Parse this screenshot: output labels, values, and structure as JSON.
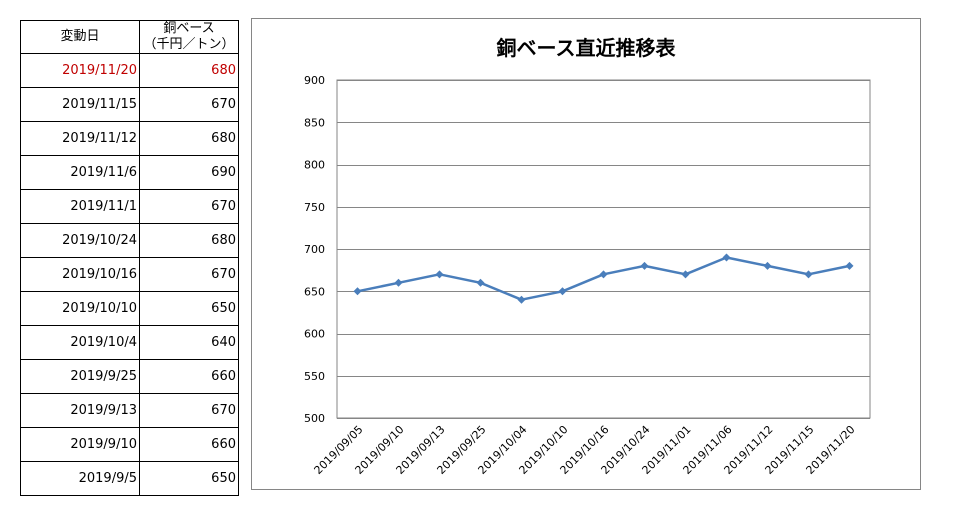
{
  "table": {
    "header_date": "変動日",
    "header_price_line1": "銅ベース",
    "header_price_line2": "（千円／トン）",
    "rows": [
      {
        "date": "2019/11/20",
        "price": "680",
        "highlight": true
      },
      {
        "date": "2019/11/15",
        "price": "670"
      },
      {
        "date": "2019/11/12",
        "price": "680"
      },
      {
        "date": "2019/11/6",
        "price": "690"
      },
      {
        "date": "2019/11/1",
        "price": "670"
      },
      {
        "date": "2019/10/24",
        "price": "680"
      },
      {
        "date": "2019/10/16",
        "price": "670"
      },
      {
        "date": "2019/10/10",
        "price": "650"
      },
      {
        "date": "2019/10/4",
        "price": "640"
      },
      {
        "date": "2019/9/25",
        "price": "660"
      },
      {
        "date": "2019/9/13",
        "price": "670"
      },
      {
        "date": "2019/9/10",
        "price": "660"
      },
      {
        "date": "2019/9/5",
        "price": "650"
      }
    ],
    "highlight_color": "#c00000"
  },
  "chart_data": {
    "type": "line",
    "title": "銅ベース直近推移表",
    "xlabel": "",
    "ylabel": "",
    "ylim": [
      500,
      900
    ],
    "yticks": [
      900,
      850,
      800,
      750,
      700,
      650,
      600,
      550,
      500
    ],
    "grid": true,
    "categories": [
      "2019/09/05",
      "2019/09/10",
      "2019/09/13",
      "2019/09/25",
      "2019/10/04",
      "2019/10/10",
      "2019/10/16",
      "2019/10/24",
      "2019/11/01",
      "2019/11/06",
      "2019/11/12",
      "2019/11/15",
      "2019/11/20"
    ],
    "series": [
      {
        "values": [
          650,
          660,
          670,
          660,
          640,
          650,
          670,
          680,
          670,
          690,
          680,
          670,
          680
        ],
        "color": "#4a7ebb"
      }
    ]
  }
}
